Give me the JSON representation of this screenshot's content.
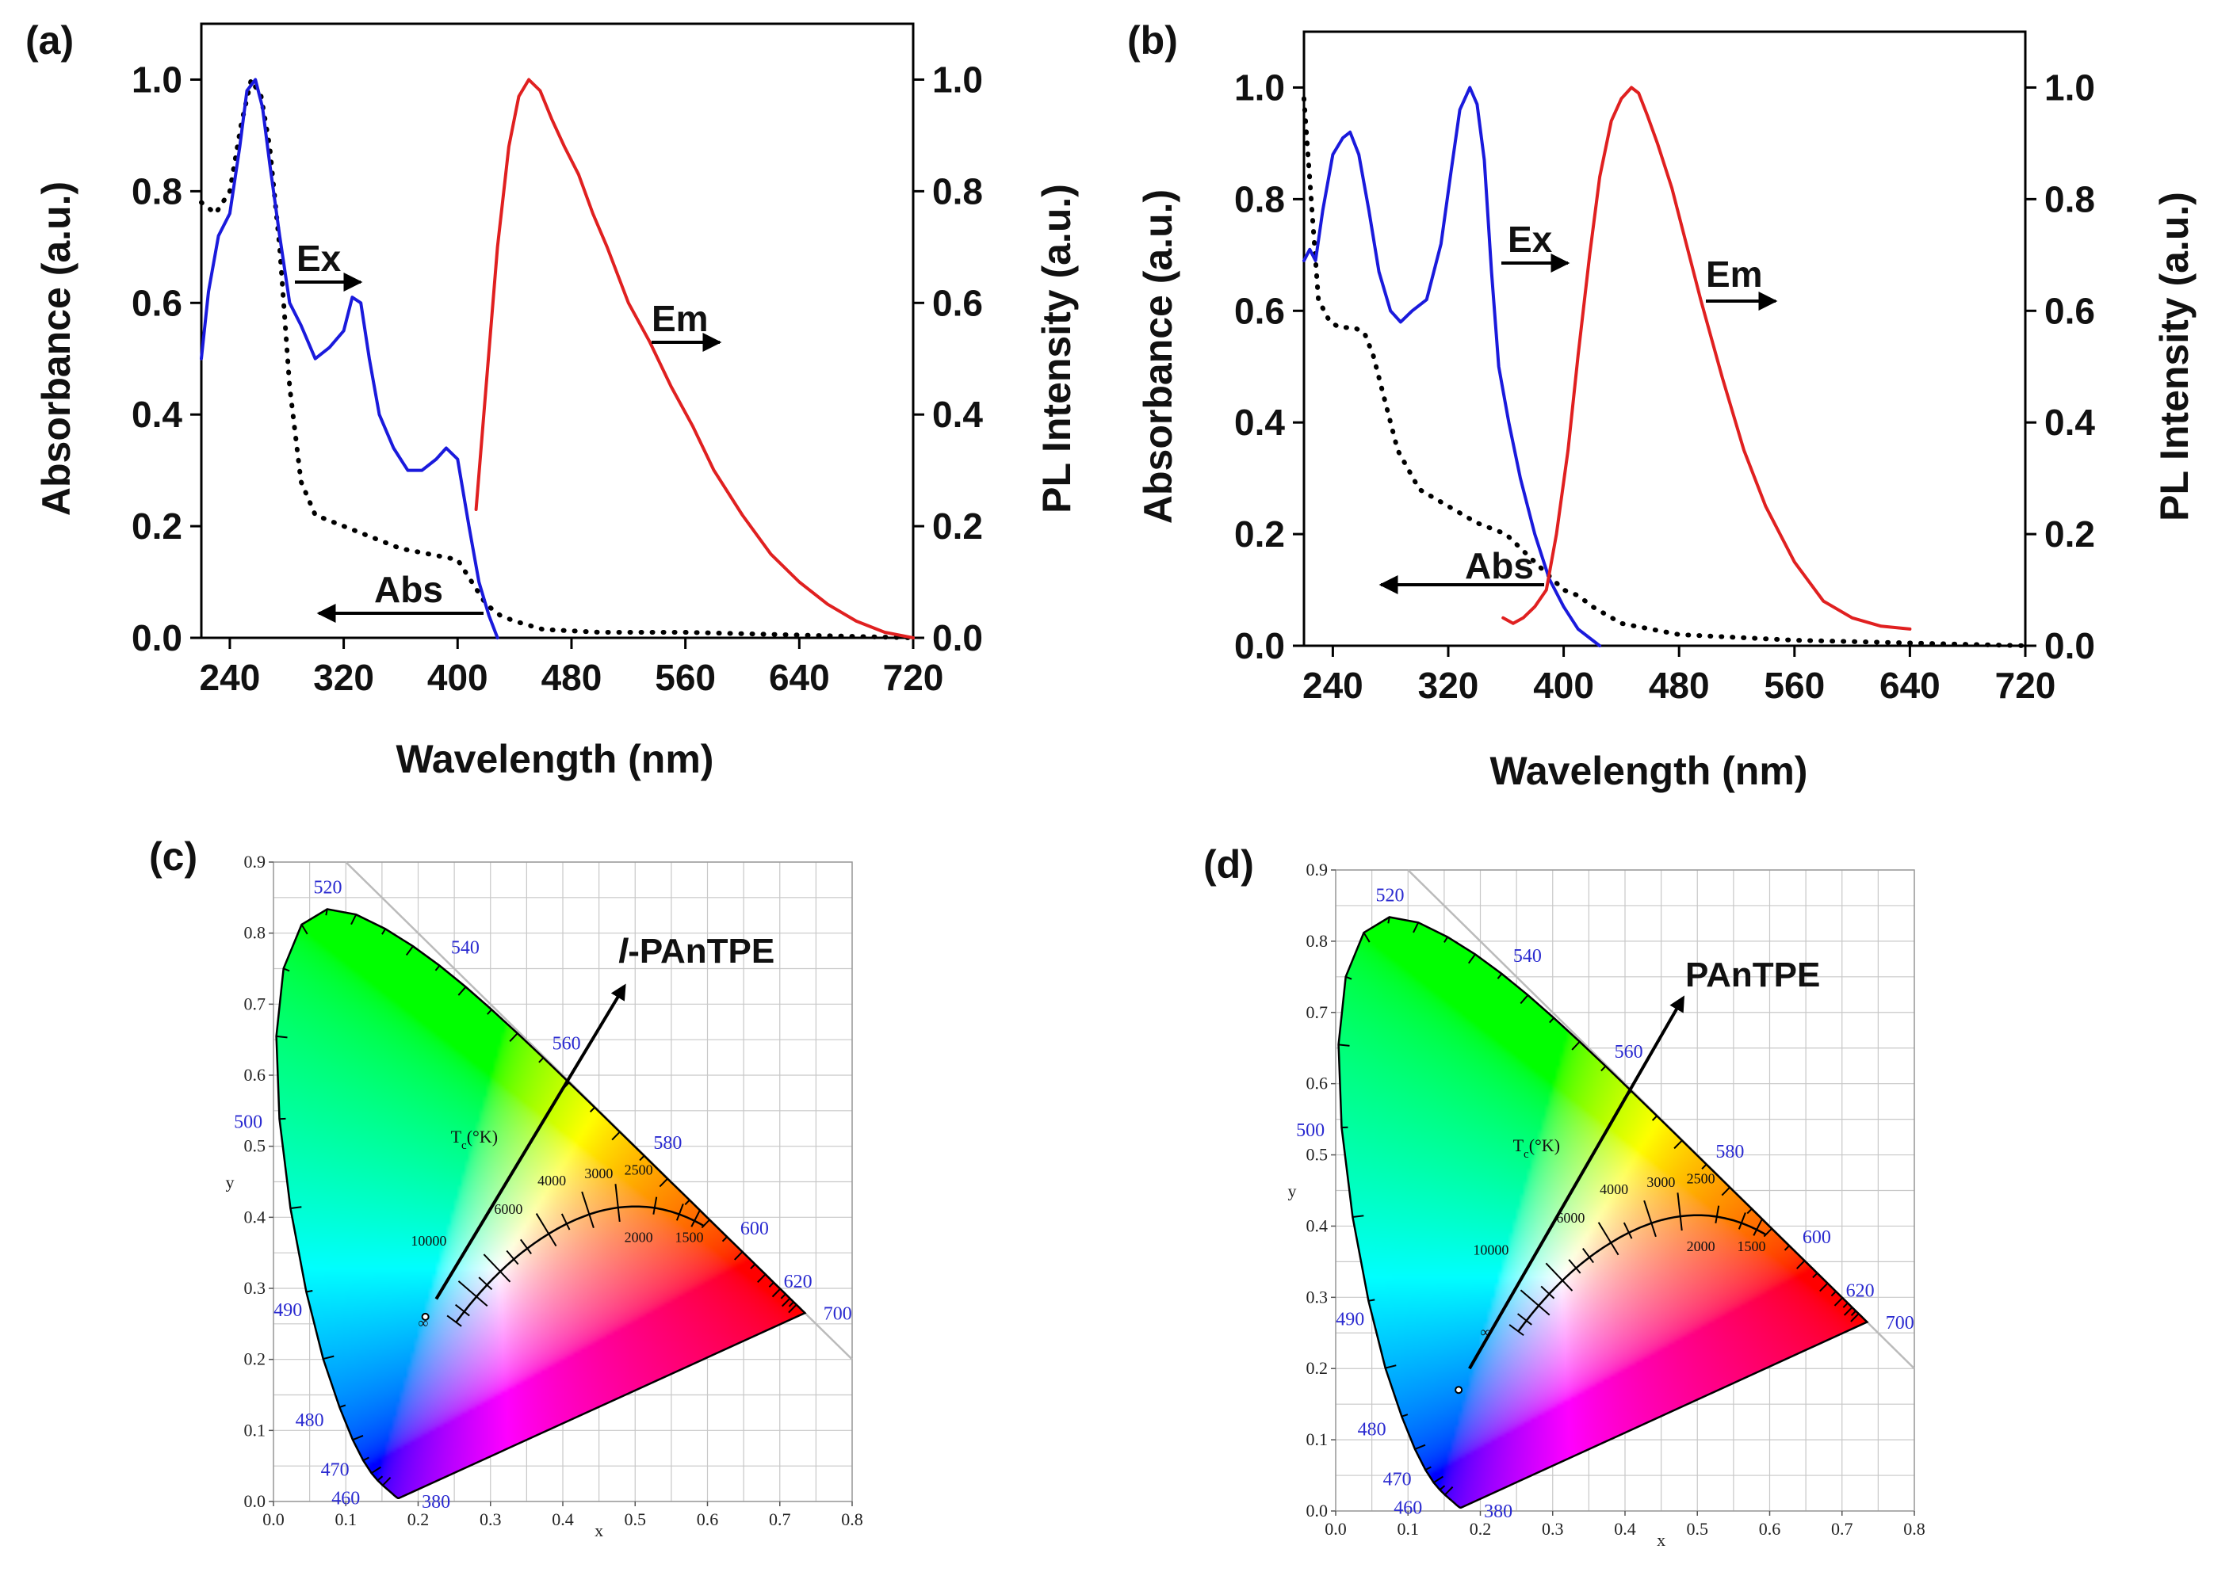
{
  "chart_data": [
    {
      "panel": "(a)",
      "type": "line",
      "xlabel": "Wavelength (nm)",
      "ylabel_left": "Absorbance (a.u.)",
      "ylabel_right": "PL Intensity (a.u.)",
      "xlim": [
        220,
        720
      ],
      "ylim": [
        0,
        1.1
      ],
      "xticks": [
        240,
        320,
        400,
        480,
        560,
        640,
        720
      ],
      "yticks": [
        0.0,
        0.2,
        0.4,
        0.6,
        0.8,
        1.0
      ],
      "ytick_labels": [
        "0.0",
        "0.2",
        "0.4",
        "0.6",
        "0.8",
        "1.0"
      ],
      "series": [
        {
          "name": "Abs",
          "style": "dotted",
          "color": "#000000",
          "x": [
            220,
            230,
            240,
            248,
            255,
            262,
            268,
            275,
            282,
            290,
            300,
            320,
            340,
            360,
            380,
            400,
            410,
            420,
            430,
            440,
            460,
            500,
            560,
            640,
            720
          ],
          "y": [
            0.78,
            0.76,
            0.8,
            0.92,
            1.0,
            0.97,
            0.88,
            0.7,
            0.45,
            0.28,
            0.22,
            0.2,
            0.18,
            0.16,
            0.15,
            0.14,
            0.1,
            0.06,
            0.04,
            0.03,
            0.015,
            0.01,
            0.01,
            0.005,
            0.0
          ]
        },
        {
          "name": "Ex",
          "style": "solid",
          "color": "#1a1adc",
          "x": [
            220,
            225,
            232,
            240,
            247,
            252,
            258,
            263,
            268,
            275,
            282,
            290,
            300,
            310,
            320,
            326,
            332,
            338,
            345,
            355,
            365,
            375,
            385,
            392,
            400,
            408,
            415,
            422,
            428
          ],
          "y": [
            0.5,
            0.62,
            0.72,
            0.76,
            0.88,
            0.98,
            1.0,
            0.95,
            0.85,
            0.72,
            0.6,
            0.56,
            0.5,
            0.52,
            0.55,
            0.61,
            0.6,
            0.5,
            0.4,
            0.34,
            0.3,
            0.3,
            0.32,
            0.34,
            0.32,
            0.2,
            0.1,
            0.04,
            0.0
          ]
        },
        {
          "name": "Em",
          "style": "solid",
          "color": "#e02020",
          "x": [
            413,
            420,
            428,
            436,
            443,
            450,
            458,
            466,
            475,
            485,
            495,
            505,
            520,
            535,
            550,
            565,
            580,
            600,
            620,
            640,
            660,
            680,
            700,
            720
          ],
          "y": [
            0.23,
            0.45,
            0.7,
            0.88,
            0.97,
            1.0,
            0.98,
            0.93,
            0.88,
            0.83,
            0.76,
            0.7,
            0.6,
            0.53,
            0.45,
            0.38,
            0.3,
            0.22,
            0.15,
            0.1,
            0.06,
            0.03,
            0.01,
            0.0
          ]
        }
      ],
      "annotations": [
        {
          "text": "Ex",
          "arrow": "right"
        },
        {
          "text": "Em",
          "arrow": "right"
        },
        {
          "text": "Abs",
          "arrow": "left"
        }
      ]
    },
    {
      "panel": "(b)",
      "type": "line",
      "xlabel": "Wavelength (nm)",
      "ylabel_left": "Absorbance (a.u.)",
      "ylabel_right": "PL Intensity (a.u.)",
      "xlim": [
        220,
        720
      ],
      "ylim": [
        0,
        1.1
      ],
      "xticks": [
        240,
        320,
        400,
        480,
        560,
        640,
        720
      ],
      "yticks": [
        0.0,
        0.2,
        0.4,
        0.6,
        0.8,
        1.0
      ],
      "ytick_labels": [
        "0.0",
        "0.2",
        "0.4",
        "0.6",
        "0.8",
        "1.0"
      ],
      "series": [
        {
          "name": "Abs",
          "style": "dotted",
          "color": "#000000",
          "x": [
            220,
            225,
            230,
            238,
            245,
            255,
            262,
            268,
            275,
            285,
            300,
            320,
            340,
            360,
            380,
            400,
            410,
            420,
            440,
            480,
            560,
            640,
            720
          ],
          "y": [
            0.98,
            0.8,
            0.62,
            0.58,
            0.57,
            0.57,
            0.56,
            0.52,
            0.45,
            0.35,
            0.28,
            0.25,
            0.22,
            0.2,
            0.15,
            0.1,
            0.09,
            0.07,
            0.04,
            0.02,
            0.01,
            0.005,
            0.0
          ]
        },
        {
          "name": "Ex",
          "style": "solid",
          "color": "#1a1adc",
          "x": [
            220,
            224,
            228,
            233,
            240,
            247,
            252,
            258,
            265,
            272,
            280,
            287,
            295,
            305,
            315,
            322,
            328,
            335,
            340,
            345,
            350,
            355,
            362,
            370,
            380,
            390,
            400,
            410,
            420,
            425
          ],
          "y": [
            0.69,
            0.71,
            0.69,
            0.78,
            0.88,
            0.91,
            0.92,
            0.88,
            0.78,
            0.67,
            0.6,
            0.58,
            0.6,
            0.62,
            0.72,
            0.85,
            0.96,
            1.0,
            0.97,
            0.87,
            0.67,
            0.5,
            0.4,
            0.3,
            0.2,
            0.12,
            0.07,
            0.03,
            0.01,
            0.0
          ]
        },
        {
          "name": "Em",
          "style": "solid",
          "color": "#e02020",
          "x": [
            358,
            365,
            372,
            380,
            388,
            395,
            403,
            410,
            418,
            425,
            433,
            440,
            447,
            452,
            458,
            465,
            475,
            485,
            495,
            510,
            525,
            540,
            560,
            580,
            600,
            620,
            640
          ],
          "y": [
            0.05,
            0.04,
            0.05,
            0.07,
            0.1,
            0.2,
            0.35,
            0.52,
            0.7,
            0.84,
            0.94,
            0.98,
            1.0,
            0.99,
            0.95,
            0.9,
            0.82,
            0.72,
            0.62,
            0.48,
            0.35,
            0.25,
            0.15,
            0.08,
            0.05,
            0.035,
            0.03
          ]
        }
      ],
      "annotations": [
        {
          "text": "Ex",
          "arrow": "right"
        },
        {
          "text": "Em",
          "arrow": "right"
        },
        {
          "text": "Abs",
          "arrow": "left"
        }
      ]
    },
    {
      "panel": "(c)",
      "type": "scatter",
      "title": "l-PAnTPE",
      "title_italic_prefix": "l",
      "title_rest": "-PAnTPE",
      "xlabel": "x",
      "ylabel": "y",
      "xlim": [
        0.0,
        0.8
      ],
      "ylim": [
        0.0,
        0.9
      ],
      "xticks": [
        "0.0",
        "0.1",
        "0.2",
        "0.3",
        "0.4",
        "0.5",
        "0.6",
        "0.7",
        "0.8"
      ],
      "yticks": [
        "0.0",
        "0.1",
        "0.2",
        "0.3",
        "0.4",
        "0.5",
        "0.6",
        "0.7",
        "0.8",
        "0.9"
      ],
      "wavelength_labels": [
        "380",
        "460",
        "470",
        "480",
        "490",
        "500",
        "520",
        "540",
        "560",
        "580",
        "600",
        "620",
        "700"
      ],
      "cct_labels": [
        "10000",
        "6000",
        "4000",
        "3000",
        "2500",
        "2000",
        "1500"
      ],
      "cct_title_main": "T",
      "cct_title_sub": "c",
      "cct_title_unit": "(°K)",
      "infinity_label": "∞",
      "point": {
        "x": 0.21,
        "y": 0.26
      },
      "arrow": {
        "from": [
          0.225,
          0.285
        ],
        "to": [
          0.485,
          0.725
        ]
      }
    },
    {
      "panel": "(d)",
      "type": "scatter",
      "title": "PAnTPE",
      "xlabel": "x",
      "ylabel": "y",
      "xlim": [
        0.0,
        0.8
      ],
      "ylim": [
        0.0,
        0.9
      ],
      "xticks": [
        "0.0",
        "0.1",
        "0.2",
        "0.3",
        "0.4",
        "0.5",
        "0.6",
        "0.7",
        "0.8"
      ],
      "yticks": [
        "0.0",
        "0.1",
        "0.2",
        "0.3",
        "0.4",
        "0.5",
        "0.6",
        "0.7",
        "0.8",
        "0.9"
      ],
      "wavelength_labels": [
        "380",
        "460",
        "470",
        "480",
        "490",
        "500",
        "520",
        "540",
        "560",
        "580",
        "600",
        "620",
        "700"
      ],
      "cct_labels": [
        "10000",
        "6000",
        "4000",
        "3000",
        "2500",
        "2000",
        "1500"
      ],
      "cct_title_main": "T",
      "cct_title_sub": "c",
      "cct_title_unit": "(°K)",
      "infinity_label": "∞",
      "point": {
        "x": 0.17,
        "y": 0.17
      },
      "arrow": {
        "from": [
          0.185,
          0.2
        ],
        "to": [
          0.48,
          0.72
        ]
      }
    }
  ]
}
